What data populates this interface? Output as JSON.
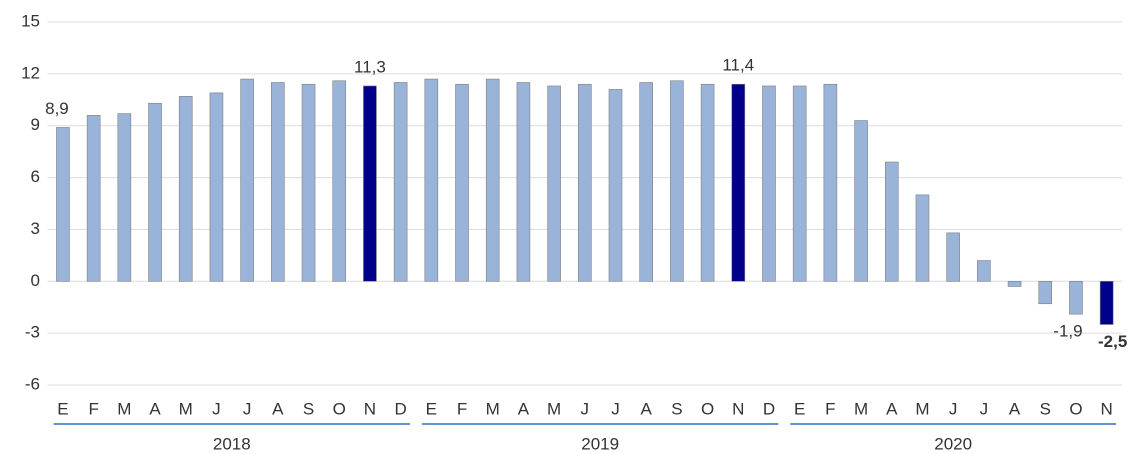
{
  "chart_data": {
    "type": "bar",
    "groups": [
      {
        "label": "2018",
        "categories": [
          "E",
          "F",
          "M",
          "A",
          "M",
          "J",
          "J",
          "A",
          "S",
          "O",
          "N",
          "D"
        ]
      },
      {
        "label": "2019",
        "categories": [
          "E",
          "F",
          "M",
          "A",
          "M",
          "J",
          "J",
          "A",
          "S",
          "O",
          "N",
          "D"
        ]
      },
      {
        "label": "2020",
        "categories": [
          "E",
          "F",
          "M",
          "A",
          "M",
          "J",
          "J",
          "A",
          "S",
          "O",
          "N"
        ]
      }
    ],
    "values": [
      8.9,
      9.6,
      9.7,
      10.3,
      10.7,
      10.9,
      11.7,
      11.5,
      11.4,
      11.6,
      11.3,
      11.5,
      11.7,
      11.4,
      11.7,
      11.5,
      11.3,
      11.4,
      11.1,
      11.5,
      11.6,
      11.4,
      11.4,
      11.3,
      11.3,
      11.4,
      9.3,
      6.9,
      5.0,
      2.8,
      1.2,
      -0.3,
      -1.3,
      -1.9,
      -2.5
    ],
    "value_labels": [
      "8,9",
      null,
      null,
      null,
      null,
      null,
      null,
      null,
      null,
      null,
      "11,3",
      null,
      null,
      null,
      null,
      null,
      null,
      null,
      null,
      null,
      null,
      null,
      "11,4",
      null,
      null,
      null,
      null,
      null,
      null,
      null,
      null,
      null,
      null,
      "-1,9",
      "-2,5"
    ],
    "colors": [
      "#9ab3d9",
      "#9ab3d9",
      "#9ab3d9",
      "#9ab3d9",
      "#9ab3d9",
      "#9ab3d9",
      "#9ab3d9",
      "#9ab3d9",
      "#9ab3d9",
      "#9ab3d9",
      "#00008b",
      "#9ab3d9",
      "#9ab3d9",
      "#9ab3d9",
      "#9ab3d9",
      "#9ab3d9",
      "#9ab3d9",
      "#9ab3d9",
      "#9ab3d9",
      "#9ab3d9",
      "#9ab3d9",
      "#9ab3d9",
      "#00008b",
      "#9ab3d9",
      "#9ab3d9",
      "#9ab3d9",
      "#9ab3d9",
      "#9ab3d9",
      "#9ab3d9",
      "#9ab3d9",
      "#9ab3d9",
      "#9ab3d9",
      "#9ab3d9",
      "#9ab3d9",
      "#00008b"
    ],
    "ylim": [
      -6,
      15
    ],
    "yticks": [
      -6,
      -3,
      0,
      3,
      6,
      9,
      12,
      15
    ],
    "grid": true
  }
}
